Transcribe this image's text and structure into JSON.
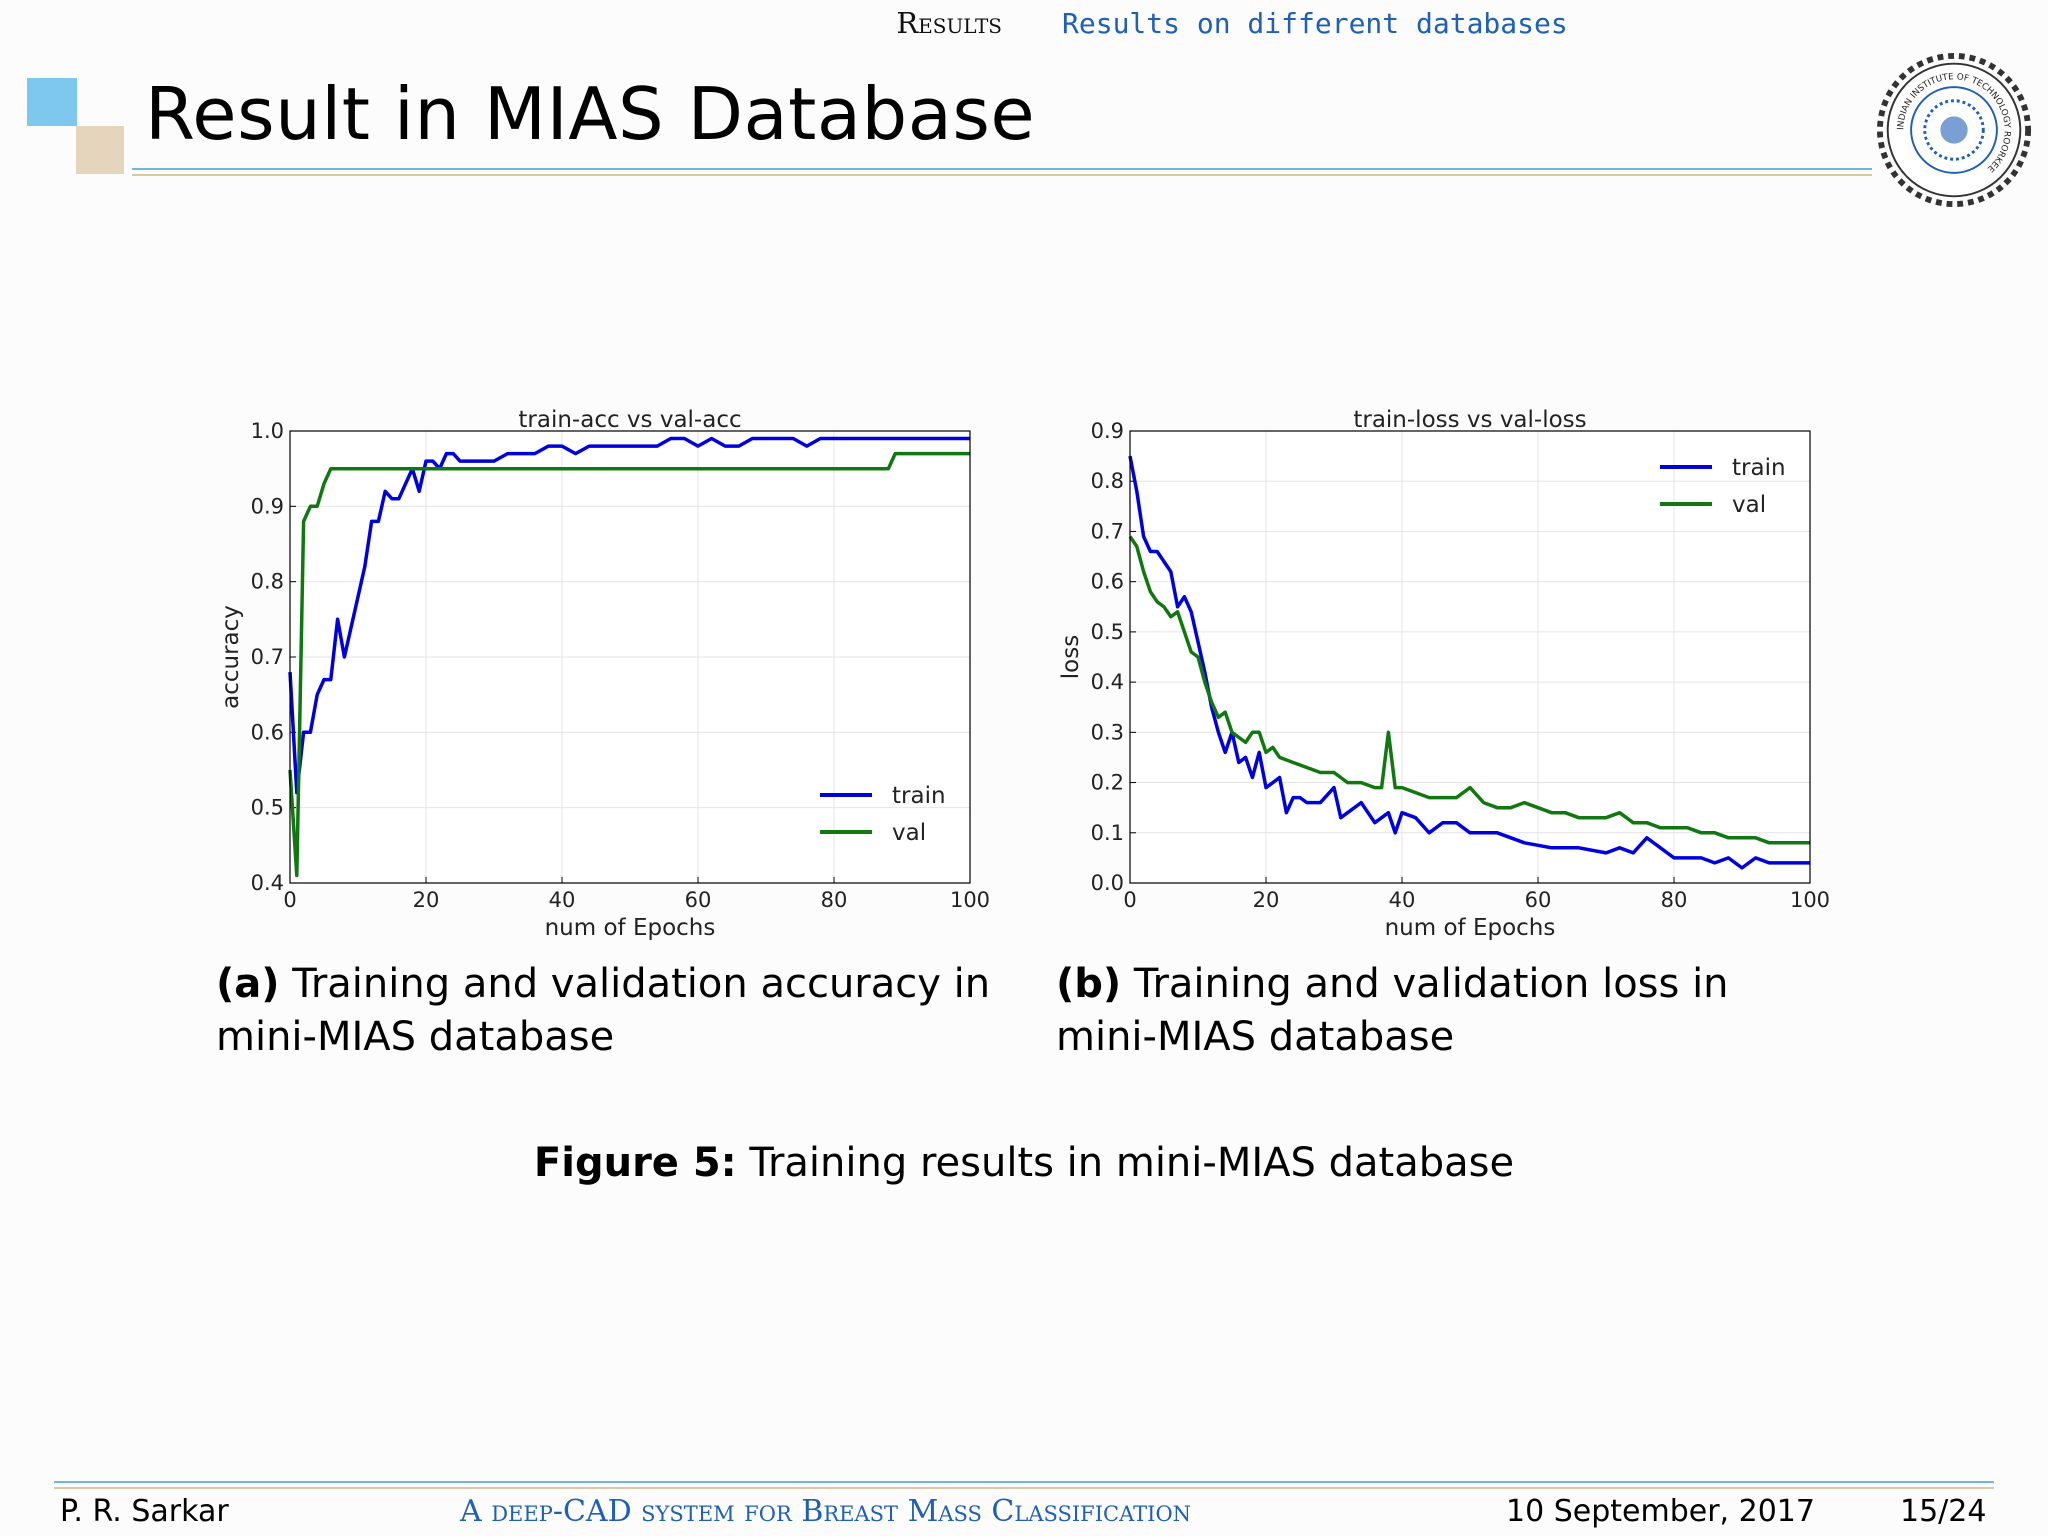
{
  "nav": {
    "section": "Results",
    "subsection": "Results on different databases"
  },
  "slide": {
    "title": "Result in MIAS Database"
  },
  "colors": {
    "train": "#0000dd",
    "val": "#117711",
    "accent_blue": "#7ec8ef",
    "accent_tan": "#e6d5bd",
    "link": "#1f5fb5"
  },
  "logo": {
    "name": "institute-seal-icon",
    "text": "INDIAN INSTITUTE OF TECHNOLOGY ROORKEE"
  },
  "captions": {
    "a_label": "(a)",
    "a_text": "Training and validation accuracy in mini-MIAS database",
    "b_label": "(b)",
    "b_text": "Training and validation loss in mini-MIAS database",
    "figure_label": "Figure 5:",
    "figure_text": "Training results in mini-MIAS database"
  },
  "footer": {
    "author": "P. R. Sarkar",
    "talk_title": "A deep-CAD system for Breast Mass Classification",
    "date": "10 September, 2017",
    "page": "15/24"
  },
  "chart_data": [
    {
      "type": "line",
      "title": "train-acc vs val-acc",
      "xlabel": "num of Epochs",
      "ylabel": "accuracy",
      "xlim": [
        0,
        100
      ],
      "ylim": [
        0.4,
        1.0
      ],
      "xticks": [
        0,
        20,
        40,
        60,
        80,
        100
      ],
      "yticks": [
        0.4,
        0.5,
        0.6,
        0.7,
        0.8,
        0.9,
        1.0
      ],
      "grid": true,
      "legend": "bottom-right",
      "series": [
        {
          "name": "train",
          "color": "#0000dd",
          "x": [
            0,
            1,
            2,
            3,
            4,
            5,
            6,
            7,
            8,
            9,
            10,
            11,
            12,
            13,
            14,
            15,
            16,
            17,
            18,
            19,
            20,
            21,
            22,
            23,
            24,
            25,
            26,
            27,
            28,
            29,
            30,
            32,
            34,
            36,
            38,
            40,
            42,
            44,
            46,
            48,
            50,
            52,
            54,
            56,
            58,
            60,
            62,
            64,
            66,
            68,
            70,
            72,
            74,
            76,
            78,
            80,
            82,
            84,
            86,
            88,
            90,
            92,
            94,
            96,
            98,
            100
          ],
          "y": [
            0.68,
            0.52,
            0.6,
            0.6,
            0.65,
            0.67,
            0.67,
            0.75,
            0.7,
            0.74,
            0.78,
            0.82,
            0.88,
            0.88,
            0.92,
            0.91,
            0.91,
            0.93,
            0.95,
            0.92,
            0.96,
            0.96,
            0.95,
            0.97,
            0.97,
            0.96,
            0.96,
            0.96,
            0.96,
            0.96,
            0.96,
            0.97,
            0.97,
            0.97,
            0.98,
            0.98,
            0.97,
            0.98,
            0.98,
            0.98,
            0.98,
            0.98,
            0.98,
            0.99,
            0.99,
            0.98,
            0.99,
            0.98,
            0.98,
            0.99,
            0.99,
            0.99,
            0.99,
            0.98,
            0.99,
            0.99,
            0.99,
            0.99,
            0.99,
            0.99,
            0.99,
            0.99,
            0.99,
            0.99,
            0.99,
            0.99
          ]
        },
        {
          "name": "val",
          "color": "#117711",
          "x": [
            0,
            1,
            2,
            3,
            4,
            5,
            6,
            7,
            8,
            88,
            89,
            100
          ],
          "y": [
            0.55,
            0.41,
            0.88,
            0.9,
            0.9,
            0.93,
            0.95,
            0.95,
            0.95,
            0.95,
            0.97,
            0.97
          ]
        }
      ]
    },
    {
      "type": "line",
      "title": "train-loss vs val-loss",
      "xlabel": "num of Epochs",
      "ylabel": "loss",
      "xlim": [
        0,
        100
      ],
      "ylim": [
        0.0,
        0.9
      ],
      "xticks": [
        0,
        20,
        40,
        60,
        80,
        100
      ],
      "yticks": [
        0.0,
        0.1,
        0.2,
        0.3,
        0.4,
        0.5,
        0.6,
        0.7,
        0.8,
        0.9
      ],
      "grid": true,
      "legend": "top-right",
      "series": [
        {
          "name": "train",
          "color": "#0000dd",
          "x": [
            0,
            1,
            2,
            3,
            4,
            5,
            6,
            7,
            8,
            9,
            10,
            11,
            12,
            13,
            14,
            15,
            16,
            17,
            18,
            19,
            20,
            21,
            22,
            23,
            24,
            25,
            26,
            28,
            30,
            31,
            32,
            34,
            36,
            38,
            39,
            40,
            42,
            44,
            46,
            48,
            50,
            54,
            58,
            62,
            66,
            70,
            72,
            74,
            76,
            78,
            80,
            84,
            86,
            88,
            90,
            92,
            94,
            96,
            98,
            100
          ],
          "y": [
            0.85,
            0.78,
            0.69,
            0.66,
            0.66,
            0.64,
            0.62,
            0.55,
            0.57,
            0.54,
            0.48,
            0.42,
            0.35,
            0.3,
            0.26,
            0.3,
            0.24,
            0.25,
            0.21,
            0.26,
            0.19,
            0.2,
            0.21,
            0.14,
            0.17,
            0.17,
            0.16,
            0.16,
            0.19,
            0.13,
            0.14,
            0.16,
            0.12,
            0.14,
            0.1,
            0.14,
            0.13,
            0.1,
            0.12,
            0.12,
            0.1,
            0.1,
            0.08,
            0.07,
            0.07,
            0.06,
            0.07,
            0.06,
            0.09,
            0.07,
            0.05,
            0.05,
            0.04,
            0.05,
            0.03,
            0.05,
            0.04,
            0.04,
            0.04,
            0.04
          ]
        },
        {
          "name": "val",
          "color": "#117711",
          "x": [
            0,
            1,
            2,
            3,
            4,
            5,
            6,
            7,
            8,
            9,
            10,
            11,
            12,
            13,
            14,
            15,
            16,
            17,
            18,
            19,
            20,
            21,
            22,
            24,
            26,
            28,
            30,
            32,
            34,
            36,
            37,
            38,
            39,
            40,
            42,
            44,
            46,
            48,
            50,
            52,
            54,
            56,
            58,
            60,
            62,
            64,
            66,
            68,
            70,
            72,
            74,
            76,
            78,
            80,
            82,
            84,
            86,
            88,
            90,
            92,
            94,
            96,
            98,
            100
          ],
          "y": [
            0.69,
            0.67,
            0.62,
            0.58,
            0.56,
            0.55,
            0.53,
            0.54,
            0.5,
            0.46,
            0.45,
            0.4,
            0.36,
            0.33,
            0.34,
            0.3,
            0.29,
            0.28,
            0.3,
            0.3,
            0.26,
            0.27,
            0.25,
            0.24,
            0.23,
            0.22,
            0.22,
            0.2,
            0.2,
            0.19,
            0.19,
            0.3,
            0.19,
            0.19,
            0.18,
            0.17,
            0.17,
            0.17,
            0.19,
            0.16,
            0.15,
            0.15,
            0.16,
            0.15,
            0.14,
            0.14,
            0.13,
            0.13,
            0.13,
            0.14,
            0.12,
            0.12,
            0.11,
            0.11,
            0.11,
            0.1,
            0.1,
            0.09,
            0.09,
            0.09,
            0.08,
            0.08,
            0.08,
            0.08
          ]
        }
      ]
    }
  ]
}
